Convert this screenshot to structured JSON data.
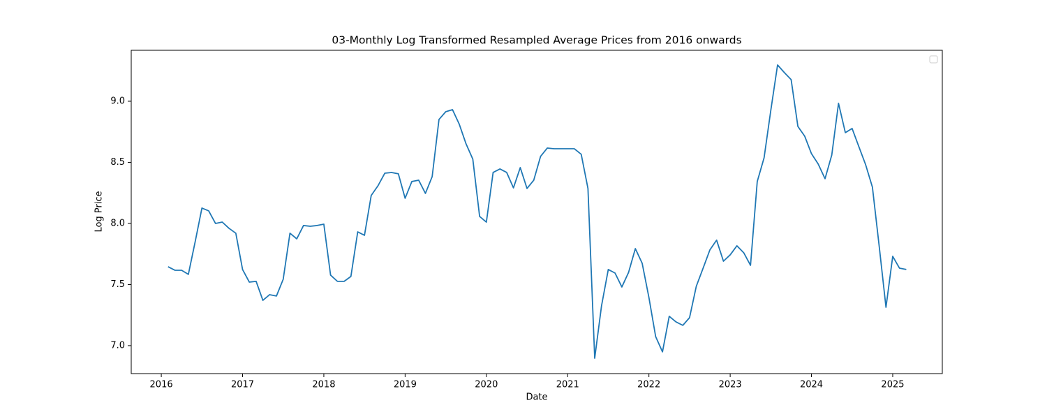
{
  "chart_data": {
    "type": "line",
    "title": "03-Monthly Log Transformed Resampled Average Prices from 2016 onwards",
    "xlabel": "Date",
    "ylabel": "Log Price",
    "legend": "upper right",
    "xlim": [
      2015.63,
      2025.61
    ],
    "ylim": [
      6.771,
      9.417
    ],
    "xticks": [
      2016,
      2017,
      2018,
      2019,
      2020,
      2021,
      2022,
      2023,
      2024,
      2025
    ],
    "yticks": [
      {
        "value": 7,
        "label": "7.0"
      },
      {
        "value": 7.5,
        "label": "7.5"
      },
      {
        "value": 8,
        "label": "8.0"
      },
      {
        "value": 8.5,
        "label": "8.5"
      },
      {
        "value": 9,
        "label": "9.0"
      }
    ],
    "x": [
      2016.083,
      2016.167,
      2016.25,
      2016.333,
      2016.417,
      2016.5,
      2016.583,
      2016.667,
      2016.75,
      2016.833,
      2016.917,
      2017,
      2017.083,
      2017.167,
      2017.25,
      2017.333,
      2017.417,
      2017.5,
      2017.583,
      2017.667,
      2017.75,
      2017.833,
      2017.917,
      2018,
      2018.083,
      2018.167,
      2018.25,
      2018.333,
      2018.417,
      2018.5,
      2018.583,
      2018.667,
      2018.75,
      2018.833,
      2018.917,
      2019,
      2019.083,
      2019.167,
      2019.25,
      2019.333,
      2019.417,
      2019.5,
      2019.583,
      2019.667,
      2019.75,
      2019.833,
      2019.917,
      2020,
      2020.083,
      2020.167,
      2020.25,
      2020.333,
      2020.417,
      2020.5,
      2020.583,
      2020.667,
      2020.75,
      2020.833,
      2020.917,
      2021,
      2021.083,
      2021.167,
      2021.25,
      2021.333,
      2021.417,
      2021.5,
      2021.583,
      2021.667,
      2021.75,
      2021.833,
      2021.917,
      2022,
      2022.083,
      2022.167,
      2022.25,
      2022.333,
      2022.417,
      2022.5,
      2022.583,
      2022.667,
      2022.75,
      2022.833,
      2022.917,
      2023,
      2023.083,
      2023.167,
      2023.25,
      2023.333,
      2023.417,
      2023.5,
      2023.583,
      2023.667,
      2023.75,
      2023.833,
      2023.917,
      2024,
      2024.083,
      2024.167,
      2024.25,
      2024.333,
      2024.417,
      2024.5,
      2024.583,
      2024.667,
      2024.75,
      2024.833,
      2024.917,
      2025,
      2025.083,
      2025.167
    ],
    "series": [
      {
        "color": "#1f77b4",
        "values": [
          7.646,
          7.617,
          7.617,
          7.583,
          7.851,
          8.126,
          8.103,
          8.0,
          8.011,
          7.96,
          7.92,
          7.623,
          7.52,
          7.526,
          7.371,
          7.417,
          7.406,
          7.543,
          7.92,
          7.874,
          7.983,
          7.977,
          7.983,
          7.994,
          7.577,
          7.526,
          7.526,
          7.566,
          7.931,
          7.903,
          8.229,
          8.309,
          8.411,
          8.417,
          8.406,
          8.206,
          8.343,
          8.354,
          8.246,
          8.383,
          8.851,
          8.914,
          8.931,
          8.811,
          8.651,
          8.526,
          8.057,
          8.011,
          8.417,
          8.446,
          8.417,
          8.291,
          8.457,
          8.286,
          8.354,
          8.549,
          8.617,
          8.611,
          8.611,
          8.611,
          8.611,
          8.566,
          8.286,
          6.897,
          7.326,
          7.623,
          7.594,
          7.48,
          7.6,
          7.794,
          7.674,
          7.394,
          7.074,
          6.949,
          7.24,
          7.194,
          7.166,
          7.229,
          7.486,
          7.634,
          7.783,
          7.863,
          7.691,
          7.743,
          7.817,
          7.76,
          7.657,
          8.343,
          8.537,
          8.926,
          9.297,
          9.234,
          9.177,
          8.794,
          8.714,
          8.571,
          8.486,
          8.366,
          8.56,
          8.983,
          8.743,
          8.777,
          8.629,
          8.48,
          8.297,
          7.817,
          7.314,
          7.731,
          7.634,
          7.623
        ]
      }
    ]
  }
}
